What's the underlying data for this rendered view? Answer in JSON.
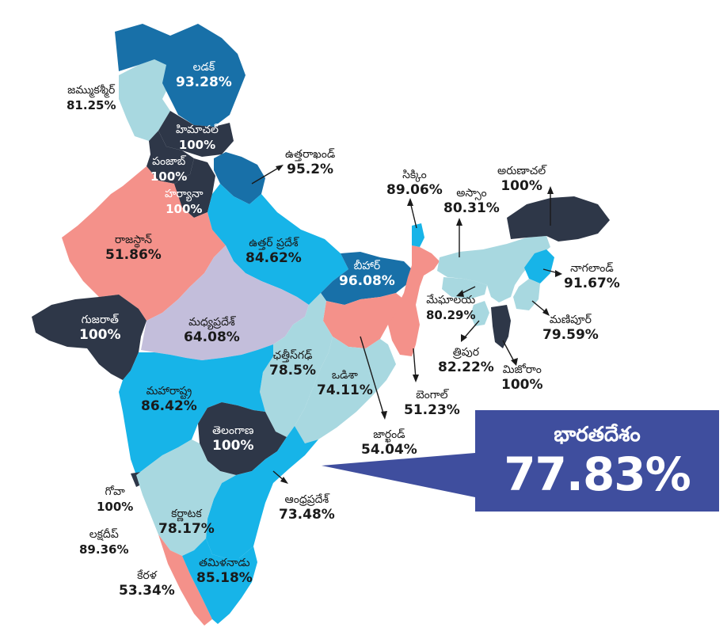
{
  "colors": {
    "dark": "#2e3748",
    "deep_blue": "#1870a8",
    "bright_blue": "#17b4e8",
    "light_teal": "#a8d8e0",
    "salmon": "#f4918a",
    "lavender": "#c3bedb",
    "national_box": "#3f4e9e"
  },
  "national": {
    "name": "భారతదేశం",
    "value": "77.83%"
  },
  "states": {
    "ladakh": {
      "name": "లడక్",
      "value": "93.28%"
    },
    "jk": {
      "name": "జమ్ముకశ్మీర్",
      "value": "81.25%"
    },
    "himachal": {
      "name": "హిమాచల్",
      "value": "100%"
    },
    "punjab": {
      "name": "పంజాబ్",
      "value": "100%"
    },
    "haryana": {
      "name": "హర్యానా",
      "value": "100%"
    },
    "uttarakhand": {
      "name": "ఉత్తరాఖండ్",
      "value": "95.2%"
    },
    "rajasthan": {
      "name": "రాజస్థాన్",
      "value": "51.86%"
    },
    "up": {
      "name": "ఉత్తర్ ప్రదేశ్",
      "value": "84.62%"
    },
    "bihar": {
      "name": "బీహార్",
      "value": "96.08%"
    },
    "sikkim": {
      "name": "సిక్కిం",
      "value": "89.06%"
    },
    "assam": {
      "name": "అస్సాం",
      "value": "80.31%"
    },
    "arunachal": {
      "name": "అరుణాచల్",
      "value": "100%"
    },
    "nagaland": {
      "name": "నాగలాండ్",
      "value": "91.67%"
    },
    "meghalaya": {
      "name": "మేఘాలయ",
      "value": "80.29%"
    },
    "manipur": {
      "name": "మణిపూర్",
      "value": "79.59%"
    },
    "tripura": {
      "name": "త్రిపుర",
      "value": "82.22%"
    },
    "mizoram": {
      "name": "మిజోరాం",
      "value": "100%"
    },
    "gujarat": {
      "name": "గుజరాత్",
      "value": "100%"
    },
    "mp": {
      "name": "మధ్యప్రదేశ్",
      "value": "64.08%"
    },
    "chhattisgarh": {
      "name": "ఛత్తీస్‌గఢ్",
      "value": "78.5%"
    },
    "odisha": {
      "name": "ఒడిశా",
      "value": "74.11%"
    },
    "bengal": {
      "name": "బెంగాల్",
      "value": "51.23%"
    },
    "jharkhand": {
      "name": "జార్ఖండ్",
      "value": "54.04%"
    },
    "maharashtra": {
      "name": "మహారాష్ట్ర",
      "value": "86.42%"
    },
    "telangana": {
      "name": "తెలంగాణ",
      "value": "100%"
    },
    "goa": {
      "name": "గోవా",
      "value": "100%"
    },
    "karnataka": {
      "name": "కర్ణాటక",
      "value": "78.17%"
    },
    "andhra": {
      "name": "ఆంధ్రప్రదేశ్",
      "value": "73.48%"
    },
    "lakshadweep": {
      "name": "లక్షదీప్",
      "value": "89.36%"
    },
    "kerala": {
      "name": "కేరళ",
      "value": "53.34%"
    },
    "tamilnadu": {
      "name": "తమిళనాడు",
      "value": "85.18%"
    }
  }
}
